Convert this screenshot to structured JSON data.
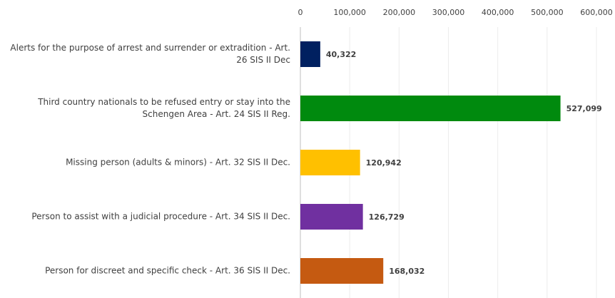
{
  "chart_data": {
    "type": "barh",
    "categories": [
      "Alerts for the purpose of arrest and surrender or extradition - Art. 26 SIS II Dec",
      "Third country nationals to be refused entry or stay into the Schengen Area - Art. 24 SIS II Reg.",
      "Missing person (adults & minors) - Art. 32 SIS II Dec.",
      "Person to assist with a judicial procedure - Art. 34 SIS II Dec.",
      "Person for discreet and specific check - Art. 36 SIS II Dec."
    ],
    "values": [
      40322,
      527099,
      120942,
      126729,
      168032
    ],
    "value_labels": [
      "40,322",
      "527,099",
      "120,942",
      "126,729",
      "168,032"
    ],
    "colors": [
      "#002060",
      "#008a0e",
      "#ffc000",
      "#7030a0",
      "#c55a11"
    ],
    "xlim": [
      0,
      600000
    ],
    "xticks": [
      0,
      {
        "value": 100000,
        "label": "100,000"
      },
      {
        "value": 200000,
        "label": "200,000"
      },
      {
        "value": 300000,
        "label": "300,000"
      },
      {
        "value": 400000,
        "label": "400,000"
      },
      {
        "value": 500000,
        "label": "500,000"
      },
      {
        "value": 600000,
        "label": "600,000"
      }
    ],
    "grid": true
  }
}
